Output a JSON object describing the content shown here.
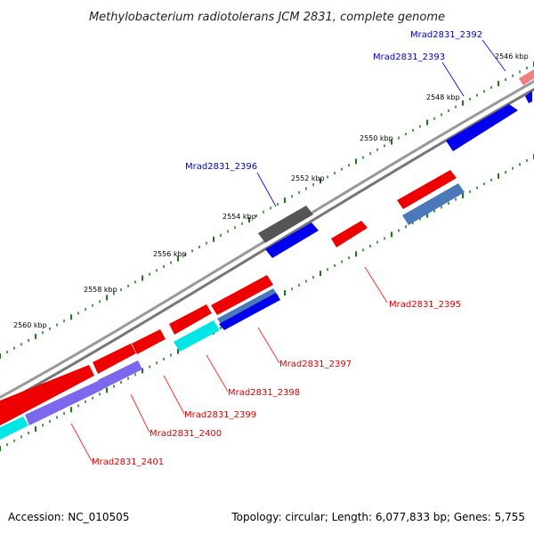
{
  "title": "Methylobacterium radiotolerans JCM 2831, complete genome",
  "footer": {
    "accession": "Accession: NC_010505",
    "topology": "Topology: circular; Length: 6,077,833 bp; Genes: 5,755"
  },
  "scale_labels": [
    "2546 kbp",
    "2548 kbp",
    "2550 kbp",
    "2552 kbp",
    "2554 kbp",
    "2556 kbp",
    "2558 kbp",
    "2560 kbp"
  ],
  "genes": [
    {
      "label": "Mrad2831_2392",
      "strand": "upper",
      "color": "#f08080"
    },
    {
      "label": "Mrad2831_2393",
      "strand": "upper",
      "color": "#0000ee"
    },
    {
      "label": "Mrad2831_2396",
      "strand": "upper",
      "color": "#606060"
    },
    {
      "label": "Mrad2831_2395",
      "strand": "lower",
      "color": "#ee0000"
    },
    {
      "label": "Mrad2831_2397",
      "strand": "lower",
      "color": "#ee0000"
    },
    {
      "label": "Mrad2831_2398",
      "strand": "lower",
      "color": "#00e5e5"
    },
    {
      "label": "Mrad2831_2399",
      "strand": "lower",
      "color": "#ee0000"
    },
    {
      "label": "Mrad2831_2400",
      "strand": "lower",
      "color": "#7b68ee"
    },
    {
      "label": "Mrad2831_2401",
      "strand": "lower",
      "color": "#ee0000"
    }
  ],
  "colors": {
    "backbone": "#888888",
    "tick": "#1a7a1a",
    "upper_label": "#0000cc",
    "lower_label": "#dd0000",
    "red": "#ee0000",
    "blue": "#0000ee",
    "steel": "#4a78b8",
    "gray": "#555555",
    "cyan": "#00e5e5",
    "purple": "#7b68ee",
    "pink": "#f08080"
  }
}
